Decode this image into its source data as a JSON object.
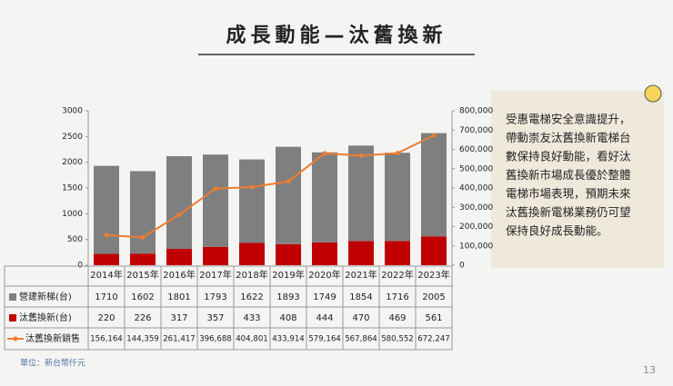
{
  "title": "成長動能—汰舊換新",
  "sidebar": {
    "lines": [
      "受惠電梯安全意識提升，",
      "帶動崇友汰舊換新電梯台",
      "數保持良好動能，看好汰",
      "舊換新市場成長優於整體",
      "電梯市場表現，預期未來",
      "汰舊換新電梯業務仍可望",
      "保持良好成長動能。"
    ]
  },
  "note": "單位：新台幣仟元",
  "page_number": "13",
  "chart_data": {
    "type": "bar",
    "stacked": true,
    "categories": [
      "2014年",
      "2015年",
      "2016年",
      "2017年",
      "2018年",
      "2019年",
      "2020年",
      "2021年",
      "2022年",
      "2023年"
    ],
    "series": [
      {
        "name": "營建新梯(台)",
        "color": "#7f7f7f",
        "values": [
          1710,
          1602,
          1801,
          1793,
          1622,
          1893,
          1749,
          1854,
          1716,
          2005
        ]
      },
      {
        "name": "汰舊換新(台)",
        "color": "#c00000",
        "values": [
          220,
          226,
          317,
          357,
          433,
          408,
          444,
          470,
          469,
          561
        ]
      },
      {
        "name": "汰舊換新銷售",
        "color": "#ed7d31",
        "type": "line",
        "axis": "y2",
        "values": [
          156164,
          144359,
          261417,
          396688,
          404801,
          433914,
          579164,
          567864,
          580552,
          672247
        ],
        "value_labels": [
          "156,164",
          "144,359",
          "261,417",
          "396,688",
          "404,801",
          "433,914",
          "579,164",
          "567,864",
          "580,552",
          "672,247"
        ]
      }
    ],
    "ylim": [
      0,
      3000
    ],
    "yticks": [
      0,
      500,
      1000,
      1500,
      2000,
      2500,
      3000
    ],
    "y2lim": [
      0,
      800000
    ],
    "y2ticks": [
      0,
      {
        "value": 100000,
        "label": "100,000"
      },
      {
        "value": 200000,
        "label": "200,000"
      },
      {
        "value": 300000,
        "label": "300,000"
      },
      {
        "value": 400000,
        "label": "400,000"
      },
      {
        "value": 500000,
        "label": "500,000"
      },
      {
        "value": 600000,
        "label": "600,000"
      },
      {
        "value": 700000,
        "label": "700,000"
      },
      {
        "value": 800000,
        "label": "800,000"
      }
    ]
  }
}
